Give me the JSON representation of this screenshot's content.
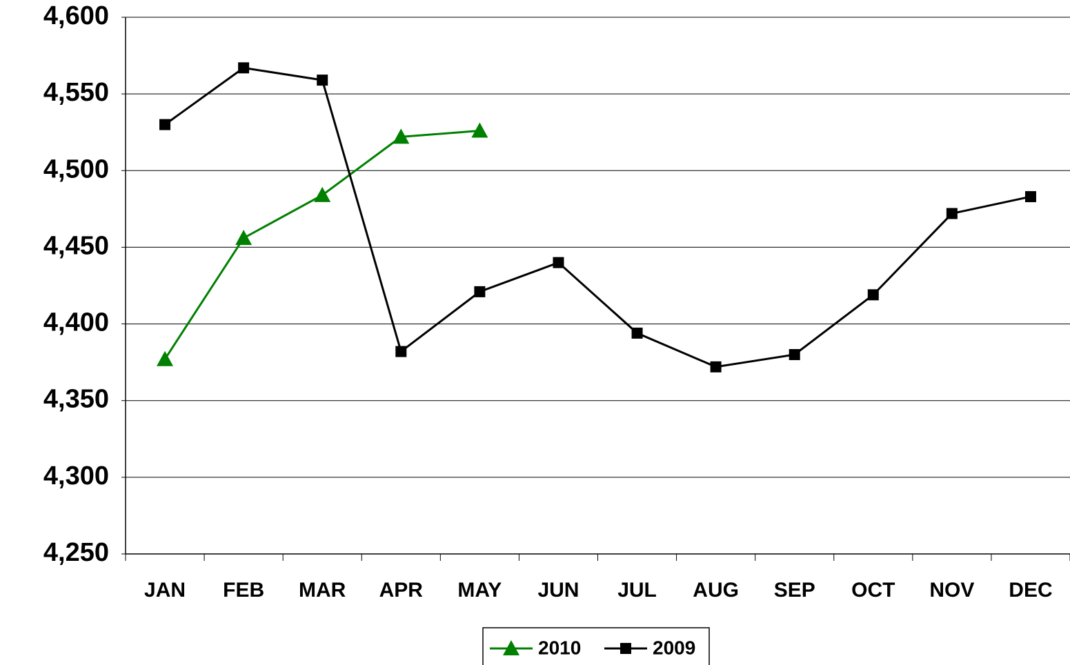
{
  "chart_data": {
    "type": "line",
    "categories": [
      "JAN",
      "FEB",
      "MAR",
      "APR",
      "MAY",
      "JUN",
      "JUL",
      "AUG",
      "SEP",
      "OCT",
      "NOV",
      "DEC"
    ],
    "series": [
      {
        "name": "2010",
        "color": "#008000",
        "marker": "triangle",
        "values": [
          4377,
          4456,
          4484,
          4522,
          4526,
          null,
          null,
          null,
          null,
          null,
          null,
          null
        ]
      },
      {
        "name": "2009",
        "color": "#000000",
        "marker": "square",
        "values": [
          4530,
          4567,
          4559,
          4382,
          4421,
          4440,
          4394,
          4372,
          4380,
          4419,
          4472,
          4483
        ]
      }
    ],
    "ylim": [
      4250,
      4600
    ],
    "yticks": [
      {
        "value": 4250,
        "label": "4,250"
      },
      {
        "value": 4300,
        "label": "4,300"
      },
      {
        "value": 4350,
        "label": "4,350"
      },
      {
        "value": 4400,
        "label": "4,400"
      },
      {
        "value": 4450,
        "label": "4,450"
      },
      {
        "value": 4500,
        "label": "4,500"
      },
      {
        "value": 4550,
        "label": "4,550"
      },
      {
        "value": 4600,
        "label": "4,600"
      }
    ],
    "grid": true,
    "legend": "bottom"
  }
}
